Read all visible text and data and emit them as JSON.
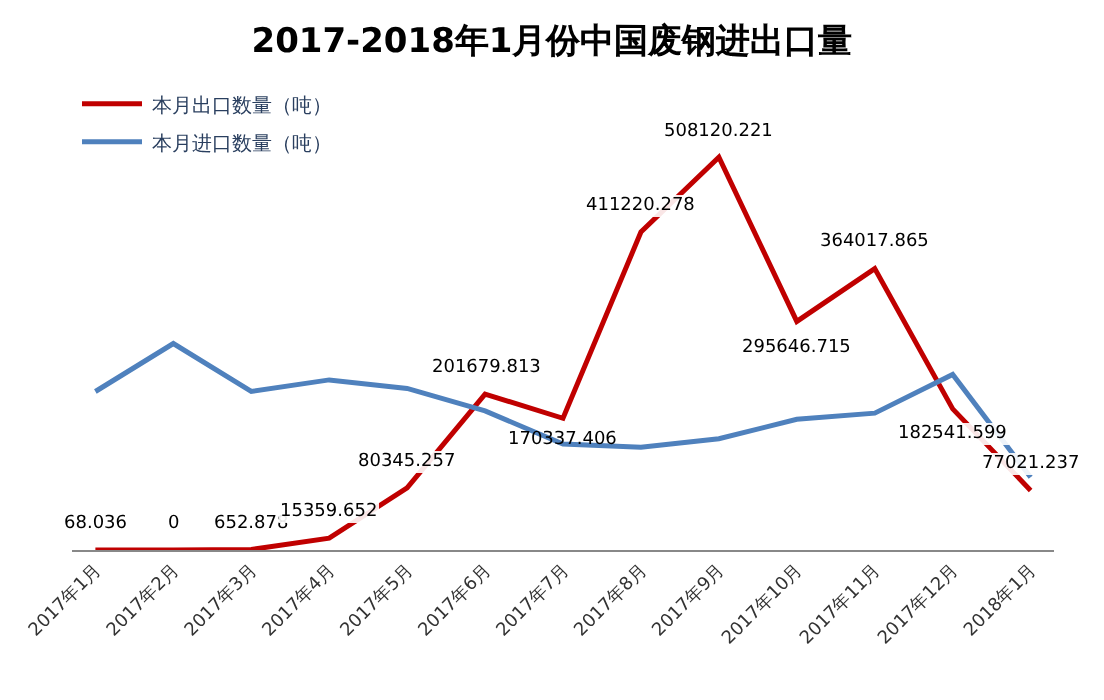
{
  "chart_data": {
    "type": "line",
    "title": "2017-2018年1月份中国废钢进出口量",
    "categories": [
      "2017年1月",
      "2017年2月",
      "2017年3月",
      "2017年4月",
      "2017年5月",
      "2017年6月",
      "2017年7月",
      "2017年8月",
      "2017年9月",
      "2017年10月",
      "2017年11月",
      "2017年12月",
      "2018年1月"
    ],
    "series": [
      {
        "name": "本月出口数量（吨）",
        "color": "#c00000",
        "values": [
          68.036,
          0,
          652.878,
          15359.652,
          80345.257,
          201679.813,
          170337.406,
          411220.278,
          508120.221,
          295646.715,
          364017.865,
          182541.599,
          77021.237
        ],
        "value_labels": [
          "68.036",
          "0",
          "652.878",
          "15359.652",
          "80345.257",
          "201679.813",
          "170337.406",
          "411220.278",
          "508120.221",
          "295646.715",
          "364017.865",
          "182541.599",
          "77021.237"
        ]
      },
      {
        "name": "本月进口数量（吨）",
        "color": "#4f81bd",
        "values": [
          205000,
          267000,
          205000,
          220000,
          209000,
          180000,
          137000,
          133000,
          144000,
          169000,
          177000,
          227000,
          94000
        ]
      }
    ],
    "legend": "top left",
    "marker": "none",
    "line_style": "solid",
    "tick_labels": "x"
  }
}
